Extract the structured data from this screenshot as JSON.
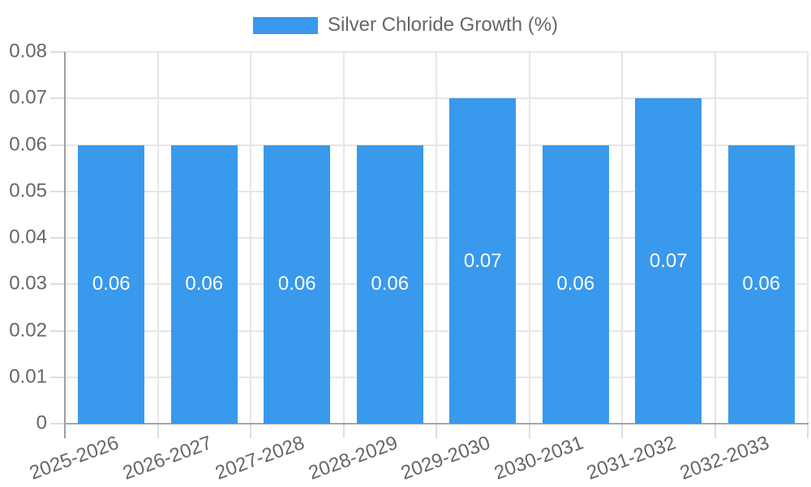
{
  "legend": {
    "label": "Silver Chloride Growth (%)"
  },
  "colors": {
    "bar": "#3999ec",
    "gridline": "#e6e6e6",
    "axis_line": "#9e9e9e",
    "tick_mark": "#dedede",
    "axis_text": "#666666",
    "bar_label_text": "#ffffff",
    "background": "#ffffff"
  },
  "chart_data": {
    "type": "bar",
    "title": "Silver Chloride Growth (%)",
    "categories": [
      "2025-2026",
      "2026-2027",
      "2027-2028",
      "2028-2029",
      "2029-2030",
      "2030-2031",
      "2031-2032",
      "2032-2033"
    ],
    "series": [
      {
        "name": "Silver Chloride Growth (%)",
        "values": [
          0.06,
          0.06,
          0.06,
          0.06,
          0.07,
          0.06,
          0.07,
          0.06
        ],
        "labels": [
          "0.06",
          "0.06",
          "0.06",
          "0.06",
          "0.07",
          "0.06",
          "0.07",
          "0.06"
        ],
        "color": "#3999ec"
      }
    ],
    "xlabel": "",
    "ylabel": "",
    "ylim": [
      0,
      0.08
    ],
    "y_ticks": [
      "0.08",
      "0.07",
      "0.06",
      "0.05",
      "0.04",
      "0.03",
      "0.02",
      "0.01",
      "0"
    ],
    "grid": true,
    "legend_position": "top",
    "data_labels_position": "inside-center"
  }
}
